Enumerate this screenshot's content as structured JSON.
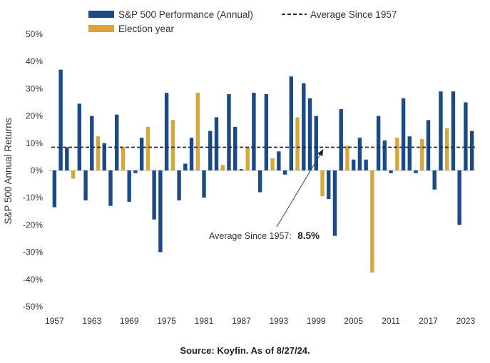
{
  "colors": {
    "performance": "#1c4a86",
    "election": "#d6a73a",
    "average_line": "#1a2b4c",
    "axis": "#bbbbbb",
    "text": "#333333"
  },
  "legend": {
    "performance_label": "S&P 500 Performance (Annual)",
    "average_label": "Average Since 1957",
    "election_label": "Election year"
  },
  "ylabel": "S&P 500 Annual Returns",
  "annotation": {
    "prefix": "Average Since 1957:",
    "value_text": "8.5%"
  },
  "source": "Source: Koyfin. As of 8/27/24.",
  "chart_data": {
    "type": "bar",
    "xlabel": "",
    "ylabel": "S&P 500 Annual Returns",
    "ylim": [
      -50,
      50
    ],
    "y_ticks": [
      -50,
      -40,
      -30,
      -20,
      -10,
      0,
      10,
      20,
      30,
      40,
      50
    ],
    "y_tick_labels": [
      "-50%",
      "-40%",
      "-30%",
      "-20%",
      "-10%",
      "0%",
      "10%",
      "20%",
      "30%",
      "40%",
      "50%"
    ],
    "x_tick_labels": [
      "1957",
      "1963",
      "1969",
      "1975",
      "1981",
      "1987",
      "1993",
      "1999",
      "2005",
      "2011",
      "2017",
      "2023"
    ],
    "average": 8.5,
    "legend_position": "top",
    "years": [
      1957,
      1958,
      1959,
      1960,
      1961,
      1962,
      1963,
      1964,
      1965,
      1966,
      1967,
      1968,
      1969,
      1970,
      1971,
      1972,
      1973,
      1974,
      1975,
      1976,
      1977,
      1978,
      1979,
      1980,
      1981,
      1982,
      1983,
      1984,
      1985,
      1986,
      1987,
      1988,
      1989,
      1990,
      1991,
      1992,
      1993,
      1994,
      1995,
      1996,
      1997,
      1998,
      1999,
      2000,
      2001,
      2002,
      2003,
      2004,
      2005,
      2006,
      2007,
      2008,
      2009,
      2010,
      2011,
      2012,
      2013,
      2014,
      2015,
      2016,
      2017,
      2018,
      2019,
      2020,
      2021,
      2022,
      2023,
      2024
    ],
    "values": [
      -13.5,
      37.0,
      8.5,
      -3.0,
      24.5,
      -11.0,
      20.0,
      12.5,
      10.0,
      -13.0,
      20.5,
      8.5,
      -11.5,
      -1.0,
      12.0,
      16.0,
      -18.0,
      -30.0,
      28.5,
      18.5,
      -11.0,
      2.5,
      12.0,
      28.5,
      -10.0,
      14.5,
      19.5,
      2.0,
      28.0,
      16.0,
      0.5,
      8.5,
      28.5,
      -8.0,
      28.0,
      4.5,
      7.0,
      -1.5,
      34.5,
      19.5,
      32.0,
      26.5,
      20.0,
      -9.5,
      -10.5,
      -24.0,
      22.5,
      9.0,
      4.0,
      12.0,
      4.0,
      -37.5,
      20.0,
      11.0,
      -1.0,
      12.0,
      26.5,
      12.5,
      -1.0,
      11.5,
      18.5,
      -7.0,
      29.0,
      15.5,
      29.0,
      -20.0,
      25.0,
      14.5
    ],
    "election_years": [
      1960,
      1964,
      1968,
      1972,
      1976,
      1980,
      1984,
      1988,
      1992,
      1996,
      2000,
      2004,
      2008,
      2012,
      2016,
      2020
    ],
    "series": [
      {
        "name": "S&P 500 Performance (Annual)"
      },
      {
        "name": "Election year"
      },
      {
        "name": "Average Since 1957"
      }
    ]
  }
}
